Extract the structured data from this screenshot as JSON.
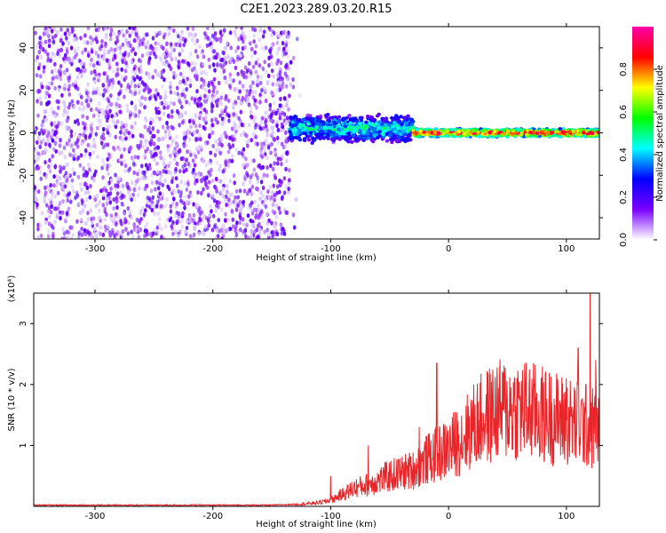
{
  "title": "C2E1.2023.289.03.20.R15",
  "colors": {
    "line": "#e8262a",
    "axis": "#000000",
    "background": "#ffffff"
  },
  "chart_data": [
    {
      "type": "heatmap",
      "xlabel": "Height of straight line (km)",
      "ylabel": "Frequency (Hz)",
      "xlim": [
        -352,
        128
      ],
      "ylim": [
        -50,
        50
      ],
      "x_ticks": [
        -300,
        -200,
        -100,
        0,
        100
      ],
      "y_ticks": [
        -40,
        -20,
        0,
        20,
        40
      ],
      "colorbar": {
        "label": "Normalized spectral amplitude",
        "range": [
          0,
          1
        ],
        "ticks": [
          0.0,
          0.2,
          0.4,
          0.6,
          0.8
        ],
        "colormap": [
          "#ffffff",
          "#7a00ff",
          "#0000ff",
          "#00ffff",
          "#00ff00",
          "#ffff00",
          "#ff0000",
          "#ff00aa"
        ]
      },
      "features": [
        {
          "x_range": [
            -352,
            -135
          ],
          "y_range": [
            -50,
            50
          ],
          "amplitude": 0.05,
          "note_type": "broadband noise"
        },
        {
          "x_range": [
            -135,
            -30
          ],
          "y_center": 2,
          "half_width": 7,
          "amplitude": 0.45
        },
        {
          "x_range": [
            -30,
            128
          ],
          "y_center": 0,
          "half_width": 2,
          "amplitude": 0.9
        }
      ]
    },
    {
      "type": "line",
      "xlabel": "Height of straight line (km)",
      "ylabel": "SNR (10 * v/v)",
      "y_multiplier": "(x10⁴)",
      "xlim": [
        -352,
        128
      ],
      "ylim": [
        0,
        3.5
      ],
      "x_ticks": [
        -300,
        -200,
        -100,
        0,
        100
      ],
      "y_ticks": [
        1,
        2,
        3
      ],
      "series": [
        {
          "x": [
            -352,
            -300,
            -250,
            -200,
            -150,
            -130,
            -110,
            -100,
            -90,
            -80,
            -70,
            -60,
            -50,
            -40,
            -30,
            -20,
            -10,
            0,
            10,
            20,
            30,
            40,
            50,
            60,
            70,
            80,
            90,
            100,
            110,
            120,
            128
          ],
          "values": [
            0.02,
            0.02,
            0.02,
            0.02,
            0.02,
            0.03,
            0.06,
            0.1,
            0.2,
            0.3,
            0.35,
            0.42,
            0.5,
            0.55,
            0.6,
            0.75,
            0.85,
            0.95,
            1.1,
            1.3,
            1.45,
            1.55,
            1.6,
            1.6,
            1.55,
            1.5,
            1.45,
            1.4,
            1.35,
            1.3,
            1.25
          ],
          "spikes": [
            {
              "x": -100,
              "y": 0.5
            },
            {
              "x": -68,
              "y": 1.0
            },
            {
              "x": -25,
              "y": 1.3
            },
            {
              "x": -10,
              "y": 2.35
            },
            {
              "x": 100,
              "y": 2.1
            },
            {
              "x": 110,
              "y": 2.6
            },
            {
              "x": 120,
              "y": 3.5
            },
            {
              "x": 125,
              "y": 2.4
            }
          ]
        }
      ]
    }
  ]
}
